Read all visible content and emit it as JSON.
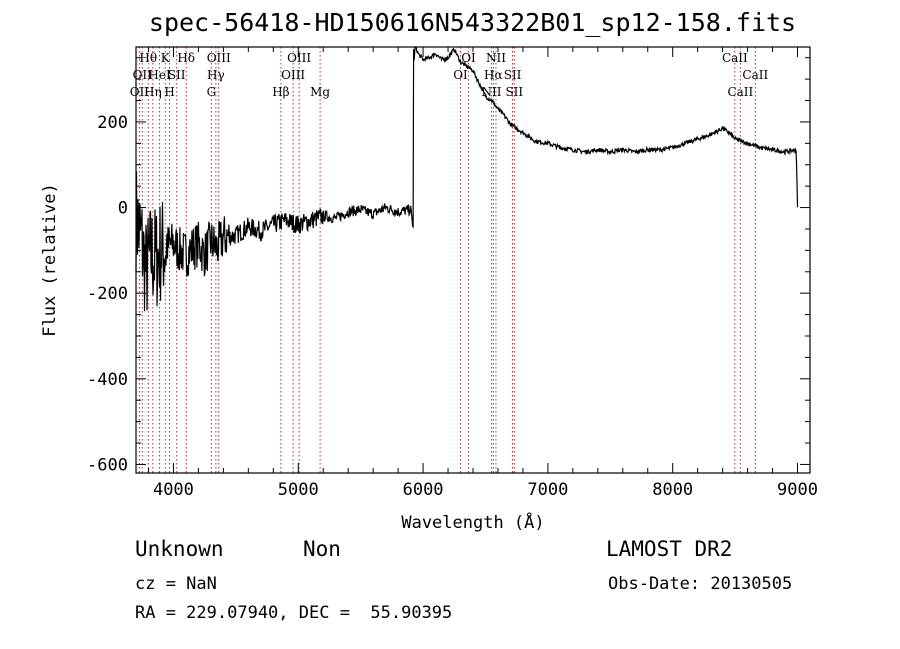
{
  "colors": {
    "spectrum": "#000000",
    "lines": "#a02020",
    "axes": "#000000"
  },
  "chart_data": {
    "type": "line",
    "title": "spec-56418-HD150616N543322B01_sp12-158.fits",
    "xlabel": "Wavelength (Å)",
    "ylabel": "Flux (relative)",
    "xlim": [
      3700,
      9100
    ],
    "ylim": [
      -620,
      375
    ],
    "xticks": [
      4000,
      5000,
      6000,
      7000,
      8000,
      9000
    ],
    "yticks": [
      -600,
      -400,
      -200,
      0,
      200
    ],
    "grid": false,
    "series": [
      {
        "x": [
          3700,
          3740,
          3780,
          3820,
          3860,
          3900,
          3950,
          4000,
          4050,
          4100,
          4150,
          4200,
          4250,
          4300,
          4350,
          4400,
          4500,
          4600,
          4700,
          4800,
          4900,
          5000,
          5100,
          5200,
          5300,
          5400,
          5500,
          5600,
          5700,
          5800,
          5900,
          5920,
          5921,
          5930,
          5935,
          5960,
          6000,
          6050,
          6100,
          6150,
          6200,
          6250,
          6300,
          6350,
          6400,
          6450,
          6500,
          6550,
          6600,
          6650,
          6700,
          6800,
          6900,
          7000,
          7100,
          7200,
          7300,
          7400,
          7500,
          7600,
          7700,
          7800,
          7900,
          8000,
          8100,
          8200,
          8300,
          8400,
          8450,
          8500,
          8600,
          8700,
          8800,
          8900,
          8990,
          9000
        ],
        "y": [
          -20,
          -70,
          -150,
          -110,
          -120,
          -100,
          -90,
          -85,
          -100,
          -110,
          -95,
          -85,
          -110,
          -80,
          -95,
          -70,
          -65,
          -45,
          -55,
          -40,
          -30,
          -40,
          -30,
          -20,
          -25,
          -10,
          -5,
          -15,
          0,
          -10,
          -5,
          -45,
          370,
          340,
          380,
          360,
          345,
          350,
          360,
          345,
          350,
          370,
          340,
          330,
          320,
          290,
          260,
          250,
          230,
          215,
          195,
          175,
          155,
          150,
          140,
          135,
          130,
          135,
          130,
          135,
          130,
          135,
          135,
          140,
          150,
          160,
          170,
          185,
          175,
          160,
          150,
          140,
          135,
          130,
          135,
          0
        ]
      }
    ],
    "line_markers": [
      {
        "wavelength": 3727,
        "label": "OII",
        "row": 3
      },
      {
        "wavelength": 3750,
        "label": "OII",
        "row": 2
      },
      {
        "wavelength": 3798,
        "label": "Hθ",
        "row": 1
      },
      {
        "wavelength": 3835,
        "label": "Hη",
        "row": 3
      },
      {
        "wavelength": 3889,
        "label": "HeI",
        "row": 2
      },
      {
        "wavelength": 3934,
        "label": "K",
        "row": 1
      },
      {
        "wavelength": 3969,
        "label": "H",
        "row": 3
      },
      {
        "wavelength": 4026,
        "label": "SII",
        "row": 2
      },
      {
        "wavelength": 4102,
        "label": "Hδ",
        "row": 1
      },
      {
        "wavelength": 4304,
        "label": "G",
        "row": 3
      },
      {
        "wavelength": 4340,
        "label": "Hγ",
        "row": 2
      },
      {
        "wavelength": 4363,
        "label": "OIII",
        "row": 1
      },
      {
        "wavelength": 4861,
        "label": "Hβ",
        "row": 3
      },
      {
        "wavelength": 4959,
        "label": "OIII",
        "row": 2
      },
      {
        "wavelength": 5007,
        "label": "OIII",
        "row": 1
      },
      {
        "wavelength": 5175,
        "label": "Mg",
        "row": 3
      },
      {
        "wavelength": 6300,
        "label": "OI",
        "row": 2
      },
      {
        "wavelength": 6364,
        "label": "OI",
        "row": 1
      },
      {
        "wavelength": 6548,
        "label": "NII",
        "row": 3
      },
      {
        "wavelength": 6563,
        "label": "Hα",
        "row": 2
      },
      {
        "wavelength": 6584,
        "label": "NII",
        "row": 1
      },
      {
        "wavelength": 6717,
        "label": "SII",
        "row": 2
      },
      {
        "wavelength": 6731,
        "label": "SII",
        "row": 3
      },
      {
        "wavelength": 8498,
        "label": "CaII",
        "row": 1
      },
      {
        "wavelength": 8542,
        "label": "CaII",
        "row": 3
      },
      {
        "wavelength": 8662,
        "label": "CaII",
        "row": 2
      }
    ]
  },
  "info": {
    "object_class": "Unknown",
    "subclass": "Non",
    "survey": "LAMOST DR2",
    "redshift": "cz = NaN",
    "obs_date": "Obs-Date: 20130505",
    "coords": "RA = 229.07940, DEC =  55.90395"
  }
}
